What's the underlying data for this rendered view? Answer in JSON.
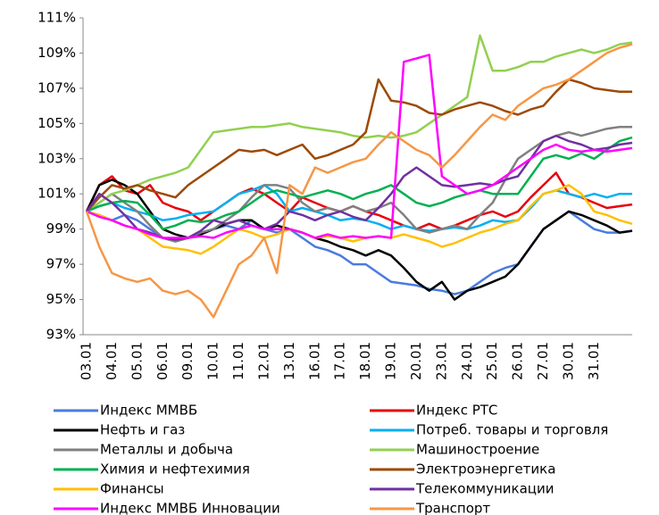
{
  "chart_data": {
    "type": "line",
    "categories": [
      "03.01",
      null,
      "04.01",
      null,
      "05.01",
      null,
      "06.01",
      null,
      "09.01",
      null,
      "10.01",
      null,
      "11.01",
      null,
      "12.01",
      null,
      "13.01",
      null,
      "16.01",
      null,
      "17.01",
      null,
      "18.01",
      null,
      "19.01",
      null,
      "20.01",
      null,
      "23.01",
      null,
      "24.01",
      null,
      "25.01",
      null,
      "26.01",
      null,
      "27.01",
      null,
      "30.01",
      null,
      "31.01",
      null,
      null,
      null
    ],
    "ylim": [
      93,
      111
    ],
    "yticks": [
      {
        "value": 93,
        "label": "93%"
      },
      {
        "value": 95,
        "label": "95%"
      },
      {
        "value": 97,
        "label": "97%"
      },
      {
        "value": 99,
        "label": "99%"
      },
      {
        "value": 101,
        "label": "101%"
      },
      {
        "value": 103,
        "label": "103%"
      },
      {
        "value": 105,
        "label": "105%"
      },
      {
        "value": 107,
        "label": "107%"
      },
      {
        "value": 109,
        "label": "109%"
      },
      {
        "value": 111,
        "label": "111%"
      }
    ],
    "grid": false,
    "series": [
      {
        "name": "Индекс ММВБ",
        "color": "#4a7bde",
        "values": [
          100,
          99.8,
          99.5,
          99.8,
          99.5,
          99,
          98.5,
          98.3,
          98.5,
          98.8,
          99,
          99.2,
          99,
          99.5,
          99,
          98.8,
          99,
          98.5,
          98,
          97.8,
          97.5,
          97,
          97,
          96.5,
          96,
          95.9,
          95.8,
          95.6,
          95.5,
          95.3,
          95.5,
          96,
          96.5,
          96.8,
          97,
          98,
          99,
          99.5,
          100,
          99.5,
          99,
          98.8,
          98.8,
          98.9
        ]
      },
      {
        "name": "Индекс РТС",
        "color": "#e8000b",
        "values": [
          100,
          101.5,
          102,
          101.2,
          101,
          101.5,
          100.5,
          100.2,
          100,
          99.5,
          100,
          100.5,
          101,
          101.3,
          101,
          100.5,
          100,
          100.8,
          100.5,
          100.2,
          100,
          100.3,
          100,
          99.8,
          99.5,
          99.2,
          99,
          99.3,
          99,
          99.2,
          99.5,
          99.8,
          100,
          99.7,
          100,
          100.8,
          101.5,
          102.2,
          101,
          100.8,
          100.5,
          100.2,
          100.3,
          100.4
        ]
      },
      {
        "name": "Нефть и газ",
        "color": "#000000",
        "values": [
          100,
          101.5,
          101.8,
          101.5,
          101,
          100,
          99,
          98.7,
          98.5,
          98.7,
          99,
          99.3,
          99.5,
          99.5,
          99,
          99.2,
          99,
          98.8,
          98.5,
          98.3,
          98,
          97.8,
          97.5,
          97.8,
          97.5,
          96.8,
          96,
          95.5,
          96,
          95,
          95.5,
          95.7,
          96,
          96.3,
          97,
          98,
          99,
          99.5,
          100,
          99.8,
          99.5,
          99.2,
          98.8,
          98.9
        ]
      },
      {
        "name": "Потреб. товары и торговля",
        "color": "#00b0f0",
        "values": [
          100,
          100.3,
          100.5,
          100.2,
          100,
          99.8,
          99.5,
          99.6,
          99.8,
          99.9,
          100,
          100.5,
          101,
          101.2,
          101.5,
          101,
          100,
          100.2,
          100,
          99.8,
          99.5,
          99.6,
          99.5,
          99.3,
          99,
          99.2,
          99,
          98.9,
          99,
          99.1,
          99,
          99.2,
          99.5,
          99.4,
          99.5,
          100.2,
          101,
          101.2,
          101,
          100.8,
          101,
          100.8,
          101,
          101
        ]
      },
      {
        "name": "Металлы и добыча",
        "color": "#808080",
        "values": [
          100,
          100.5,
          101,
          100.5,
          100,
          99.2,
          98.5,
          98.3,
          98.5,
          98.8,
          99,
          99.5,
          100,
          100.8,
          101.5,
          101.5,
          101.3,
          100.5,
          100,
          100.2,
          100,
          100.3,
          100,
          100.2,
          100.5,
          99.8,
          99,
          98.8,
          99,
          99.2,
          99,
          99.8,
          100.5,
          101.8,
          103,
          103.5,
          104,
          104.3,
          104.5,
          104.3,
          104.5,
          104.7,
          104.8,
          104.8
        ]
      },
      {
        "name": "Машиностроение",
        "color": "#92d050",
        "values": [
          100,
          100.5,
          101,
          101.2,
          101.5,
          101.8,
          102,
          102.2,
          102.5,
          103.5,
          104.5,
          104.6,
          104.7,
          104.8,
          104.8,
          104.9,
          105,
          104.8,
          104.7,
          104.6,
          104.5,
          104.3,
          104.2,
          104.3,
          104.2,
          104.3,
          104.5,
          105,
          105.5,
          106,
          106.5,
          110,
          108,
          108,
          108.2,
          108.5,
          108.5,
          108.8,
          109,
          109.2,
          109,
          109.2,
          109.5,
          109.6
        ]
      },
      {
        "name": "Химия  и нефтехимия",
        "color": "#00b050",
        "values": [
          100,
          100.3,
          100.5,
          100.6,
          100.5,
          99.8,
          99,
          99.2,
          99.5,
          99.4,
          99.5,
          99.8,
          100,
          100.5,
          101,
          101.2,
          101,
          100.8,
          101,
          101.2,
          101,
          100.7,
          101,
          101.2,
          101.5,
          101,
          100.5,
          100.3,
          100.5,
          100.8,
          101,
          101.2,
          101,
          101,
          101,
          102,
          103,
          103.2,
          103,
          103.3,
          103,
          103.5,
          104,
          104.2
        ]
      },
      {
        "name": "Электроэнергетика",
        "color": "#9c4a06",
        "values": [
          100,
          100.8,
          101.5,
          101.3,
          101.5,
          101.2,
          101,
          100.8,
          101.5,
          102,
          102.5,
          103,
          103.5,
          103.4,
          103.5,
          103.2,
          103.5,
          103.8,
          103,
          103.2,
          103.5,
          103.8,
          104.5,
          107.5,
          106.3,
          106.2,
          106,
          105.6,
          105.5,
          105.8,
          106,
          106.2,
          106,
          105.7,
          105.5,
          105.8,
          106,
          106.8,
          107.5,
          107.3,
          107,
          106.9,
          106.8,
          106.8
        ]
      },
      {
        "name": "Финансы",
        "color": "#ffc000",
        "values": [
          100,
          99.8,
          99.5,
          99.2,
          99,
          98.5,
          98,
          97.9,
          97.8,
          97.6,
          98,
          98.5,
          99,
          98.8,
          98.5,
          98.7,
          99,
          98.8,
          98.5,
          98.6,
          98.5,
          98.3,
          98.5,
          98.6,
          98.5,
          98.7,
          98.5,
          98.3,
          98,
          98.2,
          98.5,
          98.8,
          99,
          99.3,
          99.5,
          100.3,
          101,
          101.2,
          101.5,
          101,
          100,
          99.8,
          99.5,
          99.3
        ]
      },
      {
        "name": "Телекоммуникации",
        "color": "#7030a0",
        "values": [
          100,
          101,
          100.5,
          99.8,
          99,
          98.8,
          98.5,
          98.4,
          98.5,
          98.9,
          99.5,
          99.3,
          99.5,
          99.2,
          99,
          99.3,
          100,
          99.8,
          99.5,
          99.8,
          100,
          99.7,
          99.5,
          100.2,
          101,
          102,
          102.5,
          102,
          101.5,
          101.4,
          101.5,
          101.6,
          101.5,
          101.8,
          102,
          103,
          104,
          104.3,
          104,
          103.8,
          103.5,
          103.6,
          103.8,
          103.9
        ]
      },
      {
        "name": "Индекс ММВБ Инновации",
        "color": "#ff00ff",
        "values": [
          100,
          99.7,
          99.5,
          99.2,
          99,
          98.7,
          98.5,
          98.5,
          98.5,
          98.6,
          98.5,
          98.8,
          99,
          99.2,
          99,
          99,
          99,
          98.8,
          98.5,
          98.7,
          98.5,
          98.6,
          98.5,
          98.6,
          98.5,
          108.5,
          108.7,
          108.9,
          102,
          101.5,
          101,
          101.2,
          101.5,
          102,
          102.5,
          103,
          103.5,
          103.8,
          103.5,
          103.4,
          103.5,
          103.4,
          103.5,
          103.6
        ]
      },
      {
        "name": "Транспорт",
        "color": "#f79646",
        "values": [
          100,
          98,
          96.5,
          96.2,
          96,
          96.2,
          95.5,
          95.3,
          95.5,
          95,
          94,
          95.5,
          97,
          97.5,
          98.5,
          96.5,
          101.5,
          101,
          102.5,
          102.2,
          102.5,
          102.8,
          103,
          103.8,
          104.5,
          104,
          103.5,
          103.2,
          102.5,
          103.2,
          104,
          104.8,
          105.5,
          105.2,
          106,
          106.5,
          107,
          107.2,
          107.5,
          108,
          108.5,
          109,
          109.3,
          109.5
        ]
      }
    ]
  }
}
